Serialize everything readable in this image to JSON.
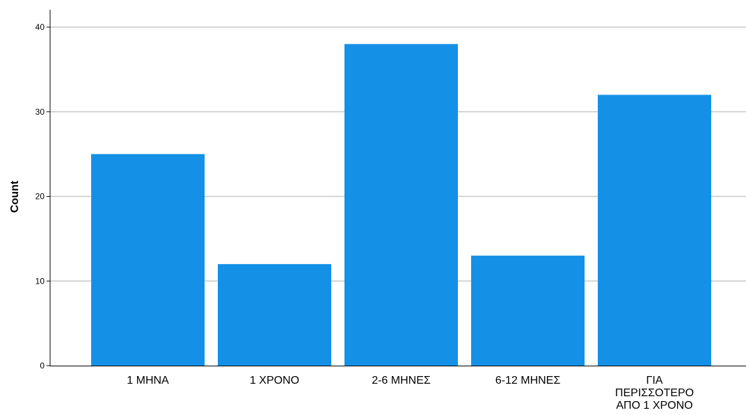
{
  "chart_data": {
    "type": "bar",
    "categories": [
      "1 ΜΗΝΑ",
      "1 ΧΡΟΝΟ",
      "2-6 ΜΗΝΕΣ",
      "6-12 ΜΗΝΕΣ",
      "ΓΙΑ ΠΕΡΙΣΣΟΤΕΡΟ ΑΠΟ 1 ΧΡΟΝΟ"
    ],
    "category_label_lines": [
      [
        "1 ΜΗΝΑ"
      ],
      [
        "1 ΧΡΟΝΟ"
      ],
      [
        "2-6 ΜΗΝΕΣ"
      ],
      [
        "6-12 ΜΗΝΕΣ"
      ],
      [
        "ΓΙΑ",
        "ΠΕΡΙΣΣΟΤΕΡΟ",
        "ΑΠΟ 1 ΧΡΟΝΟ"
      ]
    ],
    "values": [
      25,
      12,
      38,
      13,
      32
    ],
    "ylabel": "Count",
    "ylim": [
      0,
      40
    ],
    "yticks": [
      0,
      10,
      20,
      30,
      40
    ],
    "grid": true,
    "bar_color": "#1491e7",
    "grid_color": "#c8c8c8",
    "axis_color": "#000000"
  }
}
